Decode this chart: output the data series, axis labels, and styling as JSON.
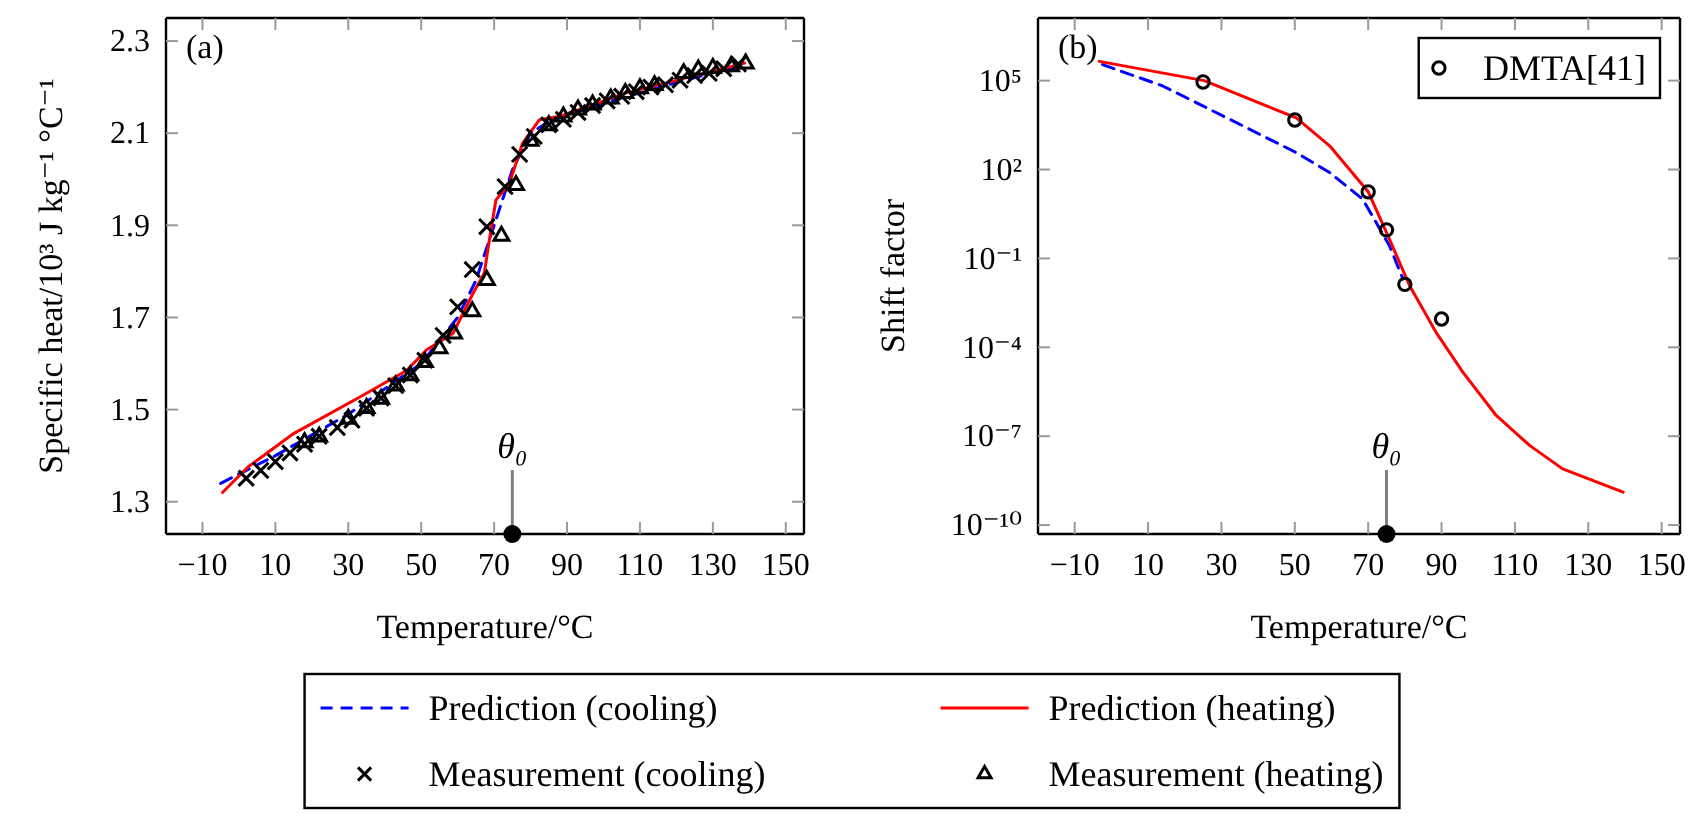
{
  "chart_data": [
    {
      "type": "line",
      "xlabel": "Temperature/°C",
      "ylabel": "Specific heat/10³ J kg⁻¹ °C⁻¹",
      "annotations": [
        "(a)"
      ],
      "xlim": [
        -20,
        155
      ],
      "xticks": [
        {
          "value": -10,
          "label": "−10"
        },
        10,
        30,
        50,
        70,
        90,
        110,
        130,
        150
      ],
      "ylim": [
        1.23,
        2.35
      ],
      "yticks": [
        1.3,
        1.5,
        1.7,
        1.9,
        2.1,
        2.3
      ],
      "legend": "bottom",
      "grid": false,
      "ref_lines": [
        {
          "axis": "x",
          "value": 75,
          "label": "θ₀",
          "color": "#808080"
        }
      ],
      "series": [
        {
          "name": "Prediction (cooling)",
          "color": "#0000ff",
          "line_style": "dashed",
          "marker": "none",
          "x": [
            -5,
            10,
            30,
            50,
            60,
            65,
            70,
            75,
            80,
            85,
            100,
            120,
            139
          ],
          "values": [
            1.34,
            1.4,
            1.49,
            1.6,
            1.7,
            1.78,
            1.9,
            2.02,
            2.1,
            2.125,
            2.165,
            2.21,
            2.25
          ]
        },
        {
          "name": "Prediction (heating)",
          "color": "#ff0000",
          "line_style": "solid",
          "marker": "none",
          "x": [
            -4.5,
            2.4,
            15,
            33.3,
            46,
            51.5,
            58.7,
            64.2,
            67.3,
            68.7,
            70.5,
            74.2,
            77.8,
            82.4,
            87.8,
            106,
            138.7
          ],
          "values": [
            1.32,
            1.375,
            1.448,
            1.528,
            1.585,
            1.63,
            1.665,
            1.752,
            1.796,
            1.868,
            1.955,
            1.991,
            2.078,
            2.129,
            2.136,
            2.187,
            2.252
          ]
        },
        {
          "name": "Measurement (cooling)",
          "type": "scatter",
          "color": "#000000",
          "marker": "cross",
          "x": [
            2,
            6,
            10,
            14,
            18,
            22,
            27,
            31,
            35,
            39,
            43,
            47,
            51,
            56,
            60,
            64,
            68,
            73,
            77,
            81,
            85,
            89,
            93,
            97,
            101,
            105,
            109,
            113,
            117,
            121,
            125,
            129,
            133,
            137
          ],
          "values": [
            1.351,
            1.368,
            1.387,
            1.406,
            1.425,
            1.442,
            1.461,
            1.477,
            1.503,
            1.525,
            1.552,
            1.575,
            1.607,
            1.661,
            1.723,
            1.804,
            1.897,
            1.984,
            2.054,
            2.093,
            2.118,
            2.13,
            2.145,
            2.16,
            2.17,
            2.18,
            2.19,
            2.2,
            2.205,
            2.215,
            2.225,
            2.23,
            2.24,
            2.25
          ]
        },
        {
          "name": "Measurement (heating)",
          "type": "scatter",
          "color": "#000000",
          "marker": "triangle",
          "x": [
            18,
            22,
            30,
            35,
            39,
            43,
            47,
            51,
            55,
            59,
            64,
            68,
            72,
            76,
            80,
            85,
            89,
            93,
            97,
            102,
            106,
            110,
            114,
            122,
            126,
            130,
            135,
            139
          ],
          "values": [
            1.429,
            1.441,
            1.48,
            1.503,
            1.523,
            1.552,
            1.574,
            1.603,
            1.633,
            1.665,
            1.713,
            1.781,
            1.877,
            1.987,
            2.083,
            2.117,
            2.136,
            2.151,
            2.162,
            2.175,
            2.187,
            2.197,
            2.204,
            2.23,
            2.238,
            2.241,
            2.245,
            2.251
          ]
        }
      ]
    },
    {
      "type": "line",
      "xlabel": "Temperature/°C",
      "ylabel": "Shift factor",
      "annotations": [
        "(b)"
      ],
      "xlim": [
        -20,
        155
      ],
      "xticks": [
        {
          "value": -10,
          "label": "−10"
        },
        10,
        30,
        50,
        70,
        90,
        110,
        130,
        150
      ],
      "ylim": [
        5e-11,
        13000000.0
      ],
      "log": "y",
      "yticks": [
        {
          "value": 1e-10,
          "label": "10⁻¹⁰"
        },
        {
          "value": 1e-07,
          "label": "10⁻⁷"
        },
        {
          "value": 0.0001,
          "label": "10⁻⁴"
        },
        {
          "value": 0.1,
          "label": "10⁻¹"
        },
        {
          "value": 100,
          "label": "10²"
        },
        {
          "value": 100000,
          "label": "10⁵"
        }
      ],
      "legend": "top right",
      "grid": false,
      "ref_lines": [
        {
          "axis": "x",
          "value": 75,
          "label": "θ₀",
          "color": "#808080"
        }
      ],
      "series": [
        {
          "color": "#0000ff",
          "line_style": "dashed",
          "marker": "none",
          "x": [
            -2.4,
            14,
            32.2,
            50.4,
            59.5,
            68.5,
            75.8,
            79.5
          ],
          "values": [
            347000,
            66000,
            5000,
            372,
            79,
            10,
            0.27,
            0.02
          ]
        },
        {
          "color": "#ff0000",
          "line_style": "solid",
          "marker": "none",
          "x": [
            -3.3,
            25.3,
            50.4,
            59.5,
            70,
            75.8,
            81.3,
            88.5,
            95.8,
            104.9,
            114,
            123,
            139.5
          ],
          "values": [
            447000,
            100000,
            5500,
            631,
            17.8,
            0.447,
            0.012,
            0.00032,
            1.45e-05,
            5e-07,
            4.9e-08,
            7.9e-09,
            1.29e-09
          ]
        },
        {
          "name": "DMTA[41]",
          "type": "scatter",
          "color": "#000000",
          "marker": "circle",
          "x": [
            25,
            50,
            70,
            75,
            80,
            90
          ],
          "values": [
            90000,
            4700,
            17.7,
            0.92,
            0.0133,
            0.0009
          ]
        }
      ]
    }
  ]
}
